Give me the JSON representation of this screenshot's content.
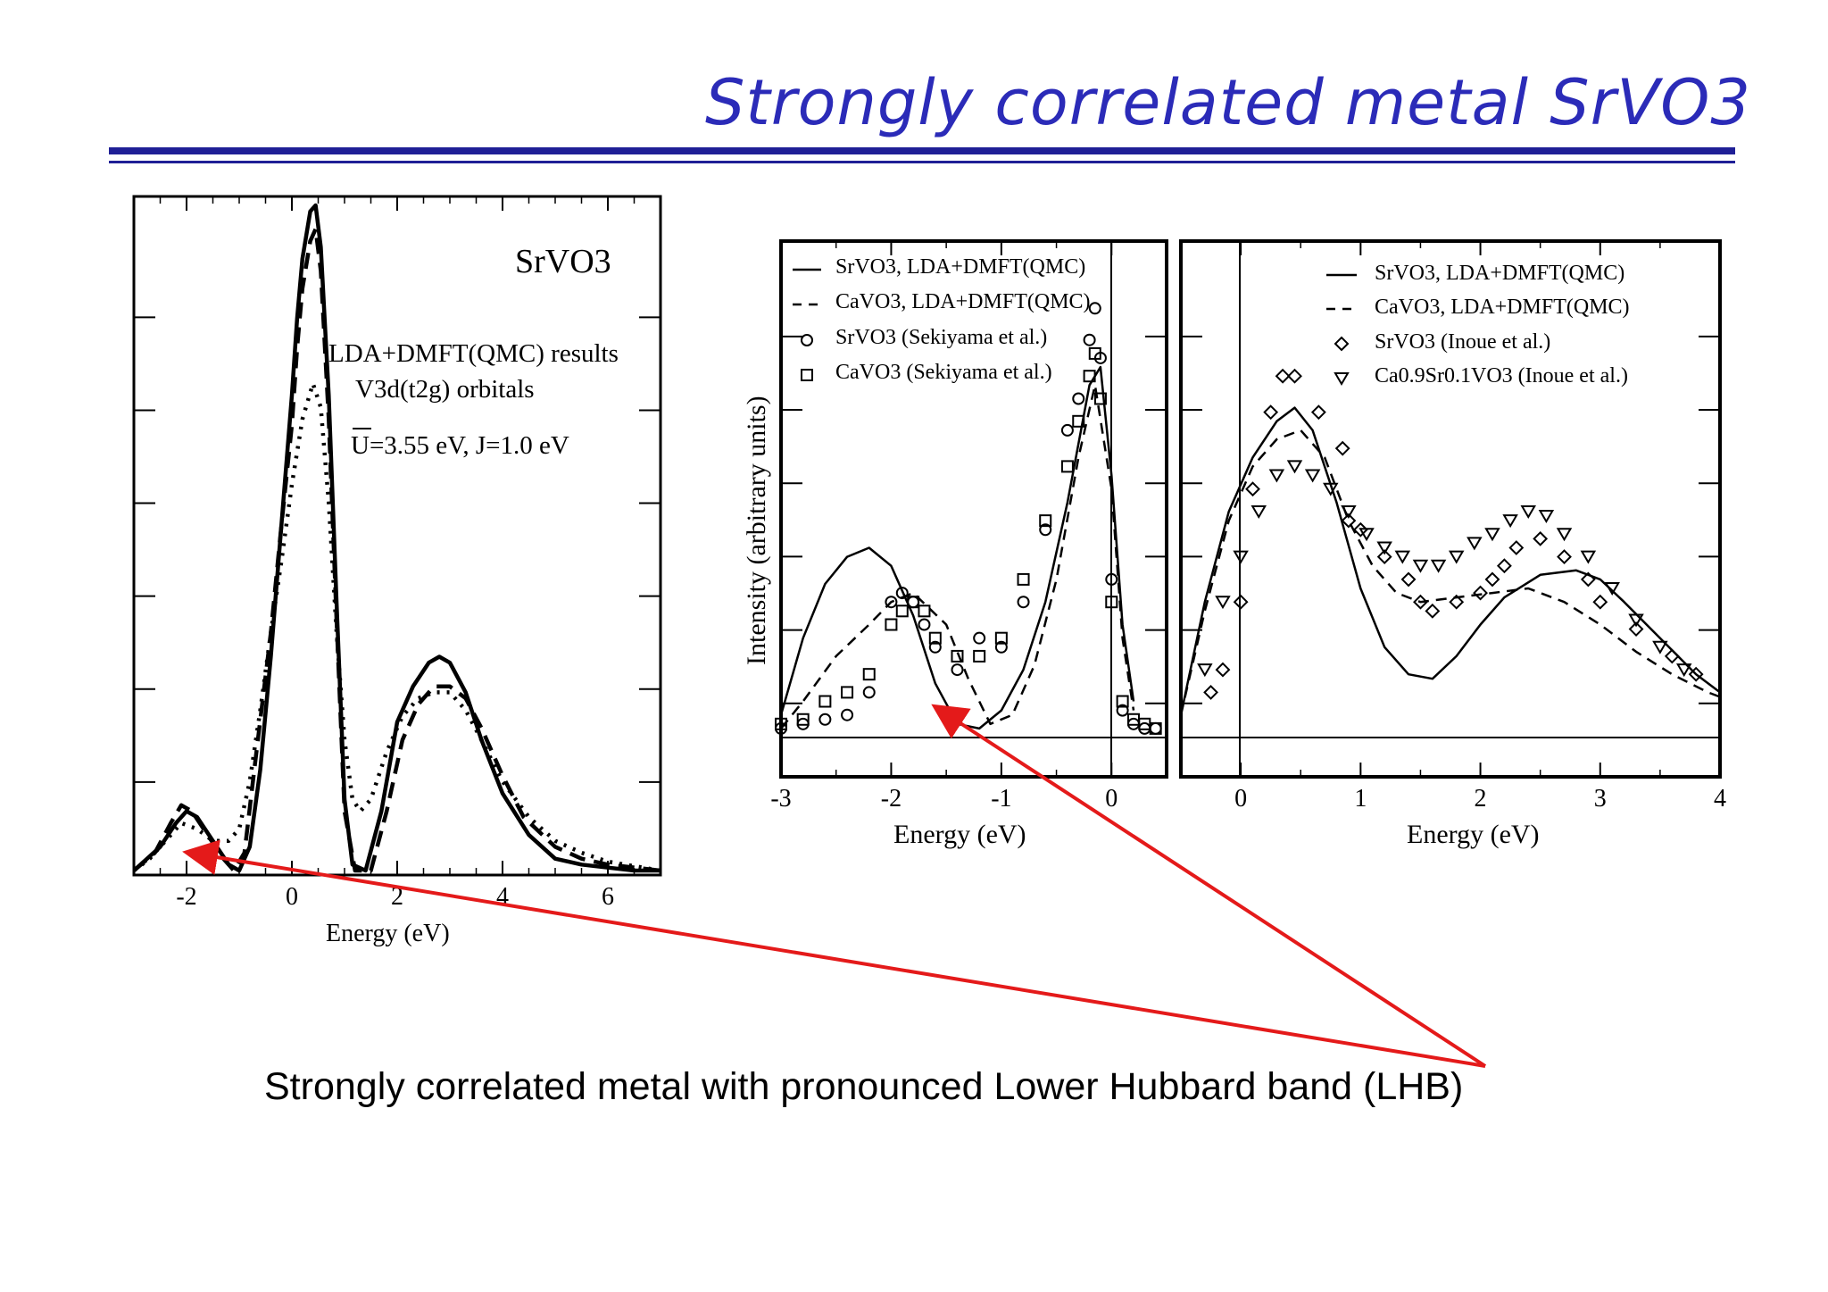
{
  "title": "Strongly correlated metal SrVO3",
  "caption": "Strongly correlated metal with pronounced Lower Hubbard band (LHB)",
  "colors": {
    "title": "#2b2bb8",
    "rule": "#1f1f96",
    "arrow": "#e41a1a"
  },
  "panel1": {
    "label": "SrVO3",
    "text1": "LDA+DMFT(QMC) results",
    "text2": "V3d(t2g) orbitals",
    "text3": "U=3.55 eV, J=1.0 eV",
    "xlabel": "Energy (eV)",
    "xticks": [
      "-2",
      "0",
      "2",
      "4",
      "6"
    ]
  },
  "panel2": {
    "ylabel": "Intensity (arbitrary units)",
    "xlabel": "Energy (eV)",
    "xticks": [
      "-3",
      "-2",
      "-1",
      "0"
    ],
    "legend": [
      "SrVO3, LDA+DMFT(QMC)",
      "CaVO3, LDA+DMFT(QMC)",
      "SrVO3 (Sekiyama et al.)",
      "CaVO3 (Sekiyama et al.)"
    ]
  },
  "panel3": {
    "xlabel": "Energy (eV)",
    "xticks": [
      "0",
      "1",
      "2",
      "3",
      "4"
    ],
    "legend": [
      "SrVO3, LDA+DMFT(QMC)",
      "CaVO3, LDA+DMFT(QMC)",
      "SrVO3 (Inoue et al.)",
      "Ca0.9Sr0.1VO3 (Inoue et al.)"
    ]
  },
  "chart_data": [
    {
      "type": "line",
      "title": "SrVO3",
      "xlabel": "Energy (eV)",
      "ylabel": "",
      "xlim": [
        -3,
        7
      ],
      "xticks": [
        -2,
        0,
        2,
        4,
        6
      ],
      "series": [
        {
          "style": "solid",
          "x": [
            -3,
            -2.5,
            -2.2,
            -2,
            -1.8,
            -1.5,
            -1.2,
            -1,
            -0.8,
            -0.6,
            -0.4,
            -0.2,
            0,
            0.1,
            0.2,
            0.35,
            0.45,
            0.55,
            0.7,
            0.85,
            1.0,
            1.15,
            1.4,
            1.7,
            2.0,
            2.3,
            2.6,
            2.8,
            3.0,
            3.3,
            3.6,
            4.0,
            4.5,
            5.0,
            5.5,
            6.0,
            6.5,
            7.0
          ],
          "y": [
            0,
            0.04,
            0.08,
            0.1,
            0.09,
            0.05,
            0.01,
            0.0,
            0.04,
            0.17,
            0.36,
            0.58,
            0.8,
            0.93,
            1.03,
            1.11,
            1.12,
            1.05,
            0.8,
            0.45,
            0.12,
            0.01,
            0,
            0.1,
            0.25,
            0.31,
            0.35,
            0.36,
            0.35,
            0.3,
            0.22,
            0.13,
            0.06,
            0.02,
            0.01,
            0.005,
            0,
            0
          ]
        },
        {
          "style": "dashed",
          "x": [
            -3,
            -2.6,
            -2.3,
            -2.1,
            -1.9,
            -1.6,
            -1.3,
            -1.1,
            -0.9,
            -0.7,
            -0.4,
            -0.2,
            0,
            0.1,
            0.2,
            0.35,
            0.45,
            0.55,
            0.7,
            0.85,
            1.0,
            1.2,
            1.5,
            1.8,
            2.1,
            2.4,
            2.7,
            3.0,
            3.3,
            3.6,
            4.0,
            4.4,
            5.0,
            5.5,
            6.0,
            7.0
          ],
          "y": [
            0,
            0.03,
            0.08,
            0.11,
            0.1,
            0.06,
            0.02,
            0.0,
            0.03,
            0.18,
            0.4,
            0.58,
            0.75,
            0.88,
            0.98,
            1.06,
            1.08,
            1.01,
            0.76,
            0.42,
            0.1,
            0,
            0,
            0.1,
            0.22,
            0.28,
            0.31,
            0.31,
            0.29,
            0.24,
            0.16,
            0.09,
            0.04,
            0.02,
            0.01,
            0
          ]
        },
        {
          "style": "dotted",
          "x": [
            -3,
            -2.7,
            -2.4,
            -2.1,
            -1.8,
            -1.5,
            -1.2,
            -1.0,
            -0.8,
            -0.6,
            -0.4,
            -0.2,
            0,
            0.2,
            0.4,
            0.55,
            0.7,
            0.85,
            1.0,
            1.15,
            1.3,
            1.5,
            1.8,
            2.1,
            2.4,
            2.7,
            3.0,
            3.3,
            3.6,
            4.0,
            4.5,
            5.0,
            5.5,
            6.0,
            7.0
          ],
          "y": [
            0,
            0.02,
            0.05,
            0.08,
            0.07,
            0.05,
            0.05,
            0.07,
            0.15,
            0.27,
            0.4,
            0.52,
            0.65,
            0.76,
            0.82,
            0.78,
            0.62,
            0.4,
            0.22,
            0.12,
            0.1,
            0.12,
            0.2,
            0.26,
            0.29,
            0.3,
            0.3,
            0.27,
            0.22,
            0.15,
            0.09,
            0.05,
            0.03,
            0.015,
            0
          ]
        }
      ]
    },
    {
      "type": "line",
      "xlabel": "Energy (eV)",
      "ylabel": "Intensity (arbitrary units)",
      "xlim": [
        -3,
        0.5
      ],
      "xticks": [
        -3,
        -2,
        -1,
        0
      ],
      "series": [
        {
          "name": "SrVO3, LDA+DMFT(QMC)",
          "style": "solid",
          "x": [
            -3,
            -2.8,
            -2.6,
            -2.4,
            -2.2,
            -2.0,
            -1.8,
            -1.6,
            -1.4,
            -1.2,
            -1.0,
            -0.8,
            -0.6,
            -0.4,
            -0.2,
            -0.1,
            0,
            0.1,
            0.2
          ],
          "y": [
            0.05,
            0.22,
            0.34,
            0.4,
            0.42,
            0.38,
            0.27,
            0.12,
            0.03,
            0.02,
            0.06,
            0.15,
            0.3,
            0.52,
            0.78,
            0.82,
            0.58,
            0.25,
            0.08
          ]
        },
        {
          "name": "CaVO3, LDA+DMFT(QMC)",
          "style": "dashed",
          "x": [
            -3,
            -2.8,
            -2.5,
            -2.2,
            -2.0,
            -1.8,
            -1.5,
            -1.3,
            -1.1,
            -0.9,
            -0.7,
            -0.5,
            -0.3,
            -0.15,
            0,
            0.1,
            0.2
          ],
          "y": [
            0.02,
            0.08,
            0.18,
            0.25,
            0.3,
            0.32,
            0.25,
            0.13,
            0.03,
            0.05,
            0.16,
            0.35,
            0.62,
            0.78,
            0.55,
            0.22,
            0.06
          ]
        },
        {
          "name": "SrVO3 (Sekiyama et al.)",
          "style": "circle",
          "x": [
            -3.0,
            -2.8,
            -2.6,
            -2.4,
            -2.2,
            -2.0,
            -1.9,
            -1.8,
            -1.7,
            -1.6,
            -1.4,
            -1.2,
            -1.0,
            -0.8,
            -0.6,
            -0.4,
            -0.3,
            -0.2,
            -0.15,
            -0.1,
            0,
            0.1,
            0.2,
            0.3,
            0.4
          ],
          "y": [
            0.02,
            0.03,
            0.04,
            0.05,
            0.1,
            0.3,
            0.32,
            0.3,
            0.25,
            0.2,
            0.15,
            0.22,
            0.2,
            0.3,
            0.46,
            0.68,
            0.75,
            0.88,
            0.95,
            0.84,
            0.35,
            0.06,
            0.03,
            0.02,
            0.02
          ]
        },
        {
          "name": "CaVO3 (Sekiyama et al.)",
          "style": "square",
          "x": [
            -3.0,
            -2.8,
            -2.6,
            -2.4,
            -2.2,
            -2.0,
            -1.9,
            -1.8,
            -1.7,
            -1.6,
            -1.4,
            -1.2,
            -1.0,
            -0.8,
            -0.6,
            -0.4,
            -0.3,
            -0.2,
            -0.15,
            -0.1,
            0,
            0.1,
            0.2,
            0.3,
            0.4
          ],
          "y": [
            0.03,
            0.04,
            0.08,
            0.1,
            0.14,
            0.25,
            0.28,
            0.3,
            0.28,
            0.22,
            0.18,
            0.18,
            0.22,
            0.35,
            0.48,
            0.6,
            0.7,
            0.8,
            0.85,
            0.75,
            0.3,
            0.08,
            0.04,
            0.03,
            0.02
          ]
        }
      ]
    },
    {
      "type": "line",
      "xlabel": "Energy (eV)",
      "ylabel": "",
      "xlim": [
        -0.5,
        4
      ],
      "xticks": [
        0,
        1,
        2,
        3,
        4
      ],
      "series": [
        {
          "name": "SrVO3, LDA+DMFT(QMC)",
          "style": "solid",
          "x": [
            -0.5,
            -0.3,
            -0.1,
            0.1,
            0.3,
            0.45,
            0.6,
            0.8,
            1.0,
            1.2,
            1.4,
            1.6,
            1.8,
            2.0,
            2.2,
            2.5,
            2.8,
            3.0,
            3.2,
            3.5,
            3.8,
            4.0
          ],
          "y": [
            0.05,
            0.3,
            0.5,
            0.62,
            0.7,
            0.73,
            0.68,
            0.52,
            0.33,
            0.2,
            0.14,
            0.13,
            0.18,
            0.25,
            0.31,
            0.36,
            0.37,
            0.35,
            0.3,
            0.22,
            0.14,
            0.1
          ]
        },
        {
          "name": "CaVO3, LDA+DMFT(QMC)",
          "style": "dashed",
          "x": [
            -0.5,
            -0.3,
            -0.1,
            0.1,
            0.3,
            0.5,
            0.7,
            0.9,
            1.1,
            1.3,
            1.5,
            1.8,
            2.1,
            2.4,
            2.7,
            3.0,
            3.3,
            3.6,
            3.9,
            4.0
          ],
          "y": [
            0.05,
            0.28,
            0.48,
            0.6,
            0.66,
            0.68,
            0.62,
            0.48,
            0.38,
            0.32,
            0.3,
            0.31,
            0.32,
            0.33,
            0.3,
            0.25,
            0.19,
            0.14,
            0.1,
            0.09
          ]
        },
        {
          "name": "SrVO3 (Inoue et al.)",
          "style": "diamond",
          "x": [
            -0.25,
            -0.15,
            0,
            0.1,
            0.25,
            0.35,
            0.45,
            0.65,
            0.85,
            0.9,
            1.0,
            1.2,
            1.4,
            1.5,
            1.6,
            1.8,
            2.0,
            2.1,
            2.2,
            2.3,
            2.5,
            2.7,
            2.9,
            3.0,
            3.3,
            3.6,
            3.8
          ],
          "y": [
            0.1,
            0.15,
            0.3,
            0.55,
            0.72,
            0.8,
            0.8,
            0.72,
            0.64,
            0.48,
            0.46,
            0.4,
            0.35,
            0.3,
            0.28,
            0.3,
            0.32,
            0.35,
            0.38,
            0.42,
            0.44,
            0.4,
            0.35,
            0.3,
            0.24,
            0.18,
            0.14
          ]
        },
        {
          "name": "Ca0.9Sr0.1VO3 (Inoue et al.)",
          "style": "triangle",
          "x": [
            -0.3,
            -0.15,
            0,
            0.15,
            0.3,
            0.45,
            0.6,
            0.75,
            0.9,
            1.05,
            1.2,
            1.35,
            1.5,
            1.65,
            1.8,
            1.95,
            2.1,
            2.25,
            2.4,
            2.55,
            2.7,
            2.9,
            3.1,
            3.3,
            3.5,
            3.7
          ],
          "y": [
            0.15,
            0.3,
            0.4,
            0.5,
            0.58,
            0.6,
            0.58,
            0.55,
            0.5,
            0.45,
            0.42,
            0.4,
            0.38,
            0.38,
            0.4,
            0.43,
            0.45,
            0.48,
            0.5,
            0.49,
            0.45,
            0.4,
            0.33,
            0.26,
            0.2,
            0.15
          ]
        }
      ]
    }
  ]
}
